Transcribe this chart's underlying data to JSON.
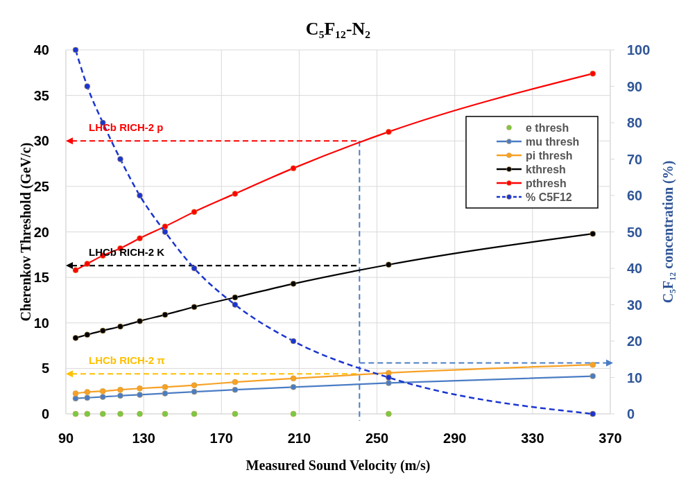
{
  "chart_data": {
    "type": "line",
    "title": "C₅F₁₂-N₂",
    "xlabel": "Measured Sound Velocity (m/s)",
    "ylabel": "Cherenkov Threshold (GeV/c)",
    "y2label": "C₅F₁₂ concentration (%)",
    "x": [
      95,
      101,
      109,
      118,
      128,
      141,
      156,
      177,
      207,
      256,
      361
    ],
    "xlim": [
      90,
      370
    ],
    "xticks": [
      90,
      130,
      170,
      210,
      250,
      290,
      330,
      370
    ],
    "ylim": [
      0,
      40
    ],
    "yticks": [
      0,
      5,
      10,
      15,
      20,
      25,
      30,
      35,
      40
    ],
    "y2lim": [
      0,
      100
    ],
    "y2ticks": [
      0,
      10,
      20,
      30,
      40,
      50,
      60,
      70,
      80,
      90,
      100
    ],
    "grid": true,
    "legend": "top right",
    "marker": "circle",
    "series": [
      {
        "name": "e thresh",
        "type": "scatter",
        "color": "#7ac943",
        "values": [
          0,
          0,
          0,
          0,
          0,
          0,
          0,
          0,
          0,
          0,
          0
        ]
      },
      {
        "name": "mu thresh",
        "color": "#4a7cc4",
        "values": [
          1.7,
          1.77,
          1.87,
          2.0,
          2.1,
          2.25,
          2.43,
          2.65,
          2.95,
          3.4,
          4.15
        ]
      },
      {
        "name": "pi thresh",
        "color": "#f7a125",
        "values": [
          2.25,
          2.4,
          2.5,
          2.65,
          2.8,
          2.95,
          3.15,
          3.5,
          3.9,
          4.5,
          5.4
        ]
      },
      {
        "name": "kthresh",
        "color": "#000000",
        "values": [
          8.35,
          8.7,
          9.15,
          9.6,
          10.2,
          10.9,
          11.75,
          12.8,
          14.3,
          16.4,
          19.8
        ]
      },
      {
        "name": "pthresh",
        "color": "#ff0000",
        "values": [
          15.8,
          16.5,
          17.4,
          18.2,
          19.3,
          20.6,
          22.2,
          24.2,
          27.0,
          31.0,
          37.4
        ]
      },
      {
        "name": "% C5F12",
        "color": "#1a35d0",
        "axis": "y2",
        "line_style": "dashed",
        "values": [
          100,
          90,
          80,
          70,
          60,
          50,
          40,
          30,
          20,
          10,
          0
        ]
      }
    ],
    "ref_lines": [
      {
        "axis": "y",
        "value": 30,
        "label": "LHCb RICH-2 p",
        "color": "#ff0000",
        "line_style": "dashed"
      },
      {
        "axis": "y",
        "value": 16.3,
        "label": "LHCb RICH-2 K",
        "color": "#000000",
        "line_style": "dashed"
      },
      {
        "axis": "y",
        "value": 4.4,
        "label": "LHCb RICH-2 π",
        "color": "#ffc000",
        "line_style": "dashed"
      },
      {
        "axis": "x",
        "value": 241,
        "color": "#4a7cc4",
        "line_style": "dashed"
      },
      {
        "axis": "y2",
        "value": 14,
        "color": "#4a7cc4",
        "line_style": "dashed"
      }
    ]
  }
}
